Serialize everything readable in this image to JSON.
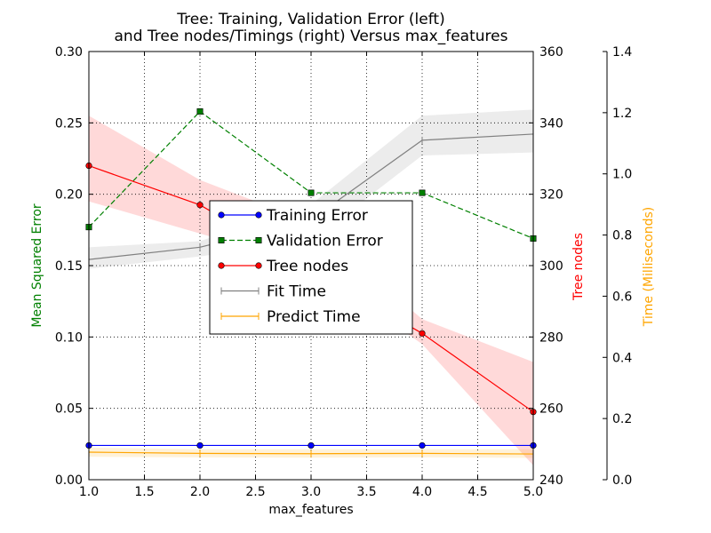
{
  "chart_data": {
    "type": "line",
    "title": [
      "Tree: Training, Validation Error (left)",
      "and Tree nodes/Timings (right) Versus max_features"
    ],
    "xlabel": "max_features",
    "ylabel_left": "Mean Squared Error",
    "ylabel_right_1": "Tree nodes",
    "ylabel_right_2": "Time (Milliseconds)",
    "x": [
      1.0,
      2.0,
      3.0,
      4.0,
      5.0
    ],
    "xlim": [
      1.0,
      5.0
    ],
    "x_ticks": [
      "1.0",
      "1.5",
      "2.0",
      "2.5",
      "3.0",
      "3.5",
      "4.0",
      "4.5",
      "5.0"
    ],
    "ylim_left": [
      0.0,
      0.3
    ],
    "y_ticks_left": [
      "0.00",
      "0.05",
      "0.10",
      "0.15",
      "0.20",
      "0.25",
      "0.30"
    ],
    "ylim_right_1": [
      240,
      360
    ],
    "y_ticks_right_1": [
      "240",
      "260",
      "280",
      "300",
      "320",
      "340",
      "360"
    ],
    "ylim_right_2": [
      0.0,
      1.4
    ],
    "y_ticks_right_2": [
      "0.0",
      "0.2",
      "0.4",
      "0.6",
      "0.8",
      "1.0",
      "1.2",
      "1.4"
    ],
    "grid": true,
    "legend_position": "center",
    "series": [
      {
        "name": "Training Error",
        "axis": "left",
        "color": "#0000ff",
        "marker": "circle",
        "dash": "solid",
        "values": [
          0.024,
          0.024,
          0.024,
          0.024,
          0.024
        ]
      },
      {
        "name": "Validation Error",
        "axis": "left",
        "color": "#008000",
        "marker": "square",
        "dash": "dashed",
        "values": [
          0.177,
          0.258,
          0.201,
          0.201,
          0.169
        ]
      },
      {
        "name": "Tree nodes",
        "axis": "right1",
        "color": "#ff0000",
        "marker": "circle",
        "dash": "solid",
        "values": [
          328,
          317,
          null,
          281,
          259
        ],
        "band_low": [
          318,
          309,
          300,
          278,
          244
        ],
        "band_high": [
          342,
          324,
          312,
          285,
          273
        ]
      },
      {
        "name": "Fit Time",
        "axis": "right2",
        "color": "#808080",
        "marker": "tick",
        "dash": "solid",
        "values": [
          0.72,
          0.76,
          0.85,
          1.11,
          1.13
        ],
        "band_low": [
          0.69,
          0.73,
          0.78,
          1.06,
          1.07
        ],
        "band_high": [
          0.76,
          0.78,
          0.9,
          1.19,
          1.21
        ]
      },
      {
        "name": "Predict Time",
        "axis": "right2",
        "color": "#ffa500",
        "marker": "tick",
        "dash": "solid",
        "values": [
          0.09,
          0.086,
          0.085,
          0.086,
          0.084
        ],
        "band_low": [
          0.075,
          0.073,
          0.072,
          0.073,
          0.071
        ],
        "band_high": [
          0.105,
          0.1,
          0.1,
          0.1,
          0.1
        ]
      }
    ],
    "colors": {
      "left_axis_label": "#008000",
      "right_axis_label_1": "#ff0000",
      "right_axis_label_2": "#ffa500"
    }
  }
}
